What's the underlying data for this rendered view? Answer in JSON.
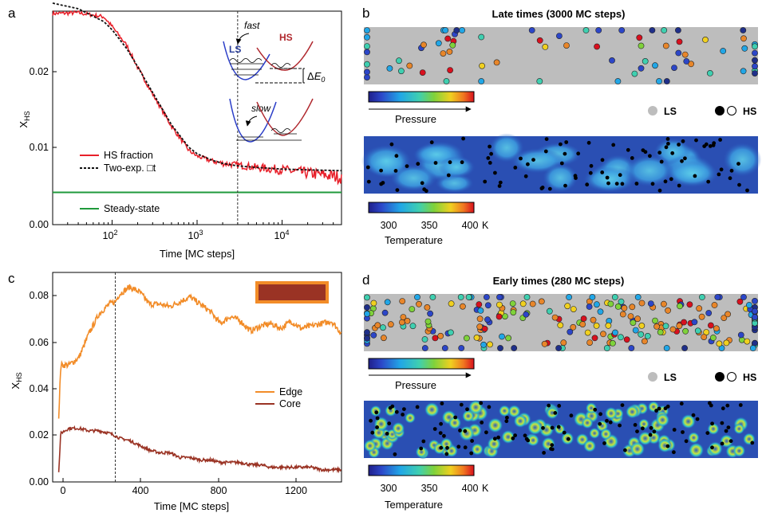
{
  "panels": {
    "a": {
      "label": "a",
      "xlabel": "Time [MC steps]",
      "ylabel_main": "X",
      "ylabel_sub": "HS",
      "ytick_labels": [
        "0.00",
        "0.01",
        "0.02"
      ],
      "xtick_base": [
        "10",
        "10",
        "10"
      ],
      "xtick_exp": [
        "2",
        "3",
        "4"
      ],
      "legend": {
        "hs_fraction": "HS fraction",
        "two_exp_fit": "Two-exp. □t",
        "steady_state": "Steady-state"
      },
      "inset": {
        "fast": "fast",
        "slow": "slow",
        "ls": "LS",
        "hs": "HS",
        "delta_e_prefix": "Δ",
        "delta_e": "E",
        "delta_e_sub": "0"
      }
    },
    "b": {
      "label": "b",
      "title": "Late times (3000 MC steps)",
      "pressure_label": "Pressure",
      "ls_label": "LS",
      "hs_label": "HS",
      "temp_label": "Temperature",
      "temp_ticks": [
        "300",
        "350",
        "400"
      ],
      "temp_unit": "K"
    },
    "c": {
      "label": "c",
      "xlabel": "Time [MC steps]",
      "ylabel_main": "X",
      "ylabel_sub": "HS",
      "ytick_labels": [
        "0.00",
        "0.02",
        "0.04",
        "0.06",
        "0.08"
      ],
      "xtick_labels": [
        "0",
        "400",
        "800",
        "1200"
      ],
      "legend": {
        "edge": "Edge",
        "core": "Core"
      }
    },
    "d": {
      "label": "d",
      "title": "Early times (280 MC steps)",
      "pressure_label": "Pressure",
      "ls_label": "LS",
      "hs_label": "HS",
      "temp_label": "Temperature",
      "temp_ticks": [
        "300",
        "350",
        "400"
      ],
      "temp_unit": "K"
    }
  },
  "colors": {
    "hs_fraction": "#e8202a",
    "fit": "#111111",
    "steady": "#1f9a3b",
    "edge": "#f28c28",
    "core": "#9a3324",
    "ls_gray": "#bdbdbd",
    "hs_dot": "#e8862a",
    "thermal_bg": "#2a4fb3"
  },
  "chart_data": [
    {
      "type": "line",
      "panel": "a",
      "x_scale": "log",
      "xlim": [
        20,
        50000
      ],
      "ylim": [
        0,
        0.0265
      ],
      "series": [
        {
          "name": "HS fraction",
          "x": [
            20,
            40,
            80,
            100,
            150,
            200,
            300,
            500,
            800,
            1000,
            1500,
            2000,
            3000,
            5000,
            10000,
            20000,
            50000
          ],
          "y": [
            0.0262,
            0.0263,
            0.0258,
            0.0246,
            0.0222,
            0.0195,
            0.0162,
            0.0122,
            0.0092,
            0.0085,
            0.0079,
            0.0076,
            0.0074,
            0.0071,
            0.0068,
            0.0064,
            0.0059
          ]
        },
        {
          "name": "Two-exp. □t",
          "x": [
            20,
            40,
            80,
            100,
            150,
            200,
            300,
            500,
            800,
            1000,
            1500,
            2000,
            3000,
            5000,
            10000,
            20000,
            50000
          ],
          "y": [
            0.0275,
            0.0268,
            0.0252,
            0.0242,
            0.0218,
            0.0196,
            0.0164,
            0.0124,
            0.0096,
            0.0088,
            0.008,
            0.0076,
            0.0073,
            0.0071,
            0.0069,
            0.0068,
            0.0067
          ]
        },
        {
          "name": "Steady-state",
          "x": [
            20,
            50000
          ],
          "y": [
            0.004,
            0.004
          ]
        }
      ],
      "vline_x": 3000
    },
    {
      "type": "line",
      "panel": "c",
      "xlim": [
        -30,
        1400
      ],
      "ylim": [
        0,
        0.086
      ],
      "series": [
        {
          "name": "Edge",
          "x": [
            0,
            10,
            50,
            100,
            150,
            200,
            250,
            280,
            300,
            350,
            400,
            450,
            500,
            550,
            600,
            650,
            700,
            750,
            800,
            850,
            900,
            950,
            1000,
            1050,
            1100,
            1150,
            1200,
            1250,
            1300,
            1350,
            1400
          ],
          "y": [
            0.026,
            0.048,
            0.048,
            0.051,
            0.061,
            0.069,
            0.073,
            0.074,
            0.077,
            0.08,
            0.078,
            0.073,
            0.073,
            0.072,
            0.074,
            0.076,
            0.073,
            0.07,
            0.065,
            0.068,
            0.066,
            0.062,
            0.064,
            0.065,
            0.063,
            0.066,
            0.063,
            0.064,
            0.065,
            0.066,
            0.061
          ]
        },
        {
          "name": "Core",
          "x": [
            0,
            10,
            50,
            100,
            150,
            200,
            250,
            280,
            300,
            350,
            400,
            450,
            500,
            550,
            600,
            650,
            700,
            750,
            800,
            850,
            900,
            950,
            1000,
            1050,
            1100,
            1150,
            1200,
            1250,
            1300,
            1350,
            1400
          ],
          "y": [
            0.004,
            0.02,
            0.022,
            0.022,
            0.021,
            0.021,
            0.02,
            0.019,
            0.018,
            0.017,
            0.015,
            0.013,
            0.012,
            0.012,
            0.01,
            0.01,
            0.009,
            0.009,
            0.008,
            0.008,
            0.008,
            0.007,
            0.007,
            0.006,
            0.006,
            0.006,
            0.006,
            0.006,
            0.005,
            0.005,
            0.005
          ]
        }
      ],
      "vline_x": 280
    }
  ]
}
